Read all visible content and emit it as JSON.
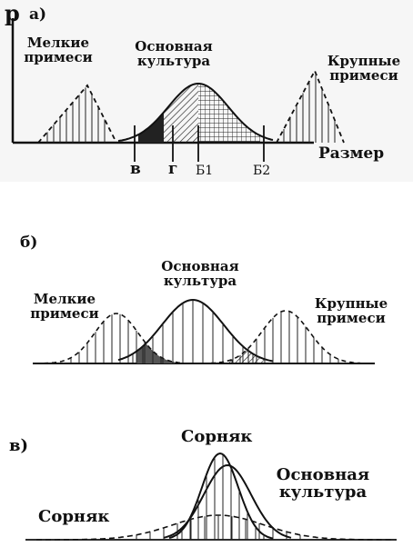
{
  "panel_a": {
    "axis_y": "р",
    "letter": "а)",
    "small_impurities": "Мелкие примеси",
    "main_crop": "Основная культура",
    "large_impurities": "Крупные примеси",
    "axis_x": "Размер",
    "mark_v": "в",
    "mark_g": "г",
    "mark_b1": "Б1",
    "mark_b2": "Б2"
  },
  "panel_b": {
    "letter": "б)",
    "small_impurities": "Мелкие примеси",
    "main_crop": "Основная культура",
    "large_impurities": "Крупные примеси"
  },
  "panel_c": {
    "letter": "в)",
    "weed_top": "Сорняк",
    "main_crop": "Основная культура",
    "weed_left": "Сорняк"
  },
  "colors": {
    "ink": "#111111",
    "panel_a_background": "#f6f6f6"
  }
}
